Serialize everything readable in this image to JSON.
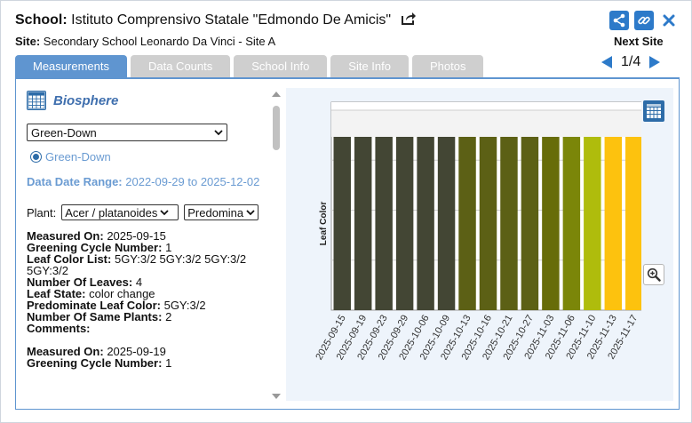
{
  "header": {
    "school_label": "School:",
    "school_name": "Istituto Comprensivo Statale \"Edmondo De Amicis\"",
    "site_label": "Site:",
    "site_name": "Secondary School Leonardo Da Vinci - Site A",
    "next_site_label": "Next Site",
    "page_indicator": "1/4"
  },
  "tabs": [
    {
      "label": "Measurements",
      "active": true
    },
    {
      "label": "Data Counts"
    },
    {
      "label": "School Info"
    },
    {
      "label": "Site Info"
    },
    {
      "label": "Photos"
    }
  ],
  "panel": {
    "protocol_title": "Biosphere",
    "protocol_select": "Green-Down",
    "radio_option": "Green-Down",
    "date_range_label": "Data Date Range:",
    "date_range_value": "2022-09-29 to 2025-12-02",
    "plant_label": "Plant:",
    "plant_select": "Acer / platanoides",
    "predominate_select": "Predomina"
  },
  "records": [
    {
      "measured_on_label": "Measured On:",
      "measured_on": "2025-09-15",
      "greening_cycle_label": "Greening Cycle Number:",
      "greening_cycle": "1",
      "leaf_color_list_label": "Leaf Color List:",
      "leaf_color_list": "5GY:3/2 5GY:3/2 5GY:3/2 5GY:3/2",
      "number_of_leaves_label": "Number Of Leaves:",
      "number_of_leaves": "4",
      "leaf_state_label": "Leaf State:",
      "leaf_state": "color change",
      "predominate_color_label": "Predominate Leaf Color:",
      "predominate_color": "5GY:3/2",
      "same_plants_label": "Number Of Same Plants:",
      "same_plants": "2",
      "comments_label": "Comments:",
      "comments": ""
    },
    {
      "measured_on_label": "Measured On:",
      "measured_on": "2025-09-19",
      "greening_cycle_label": "Greening Cycle Number:",
      "greening_cycle": "1"
    }
  ],
  "colors": {
    "accent": "#2d7ac9",
    "tab_active": "#5f95d0",
    "tab_inactive": "#cfcfcf",
    "chart_bg": "#eef4fb"
  },
  "icons": [
    "share-out-icon",
    "share-icon",
    "link-icon",
    "close-icon",
    "chevron-left-icon",
    "chevron-right-icon",
    "table-icon",
    "zoom-in-icon",
    "chevron-down-icon"
  ],
  "chart_data": {
    "type": "bar",
    "ylabel": "Leaf Color",
    "categories": [
      "2025-09-15",
      "2025-09-19",
      "2025-09-23",
      "2025-09-29",
      "2025-10-06",
      "2025-10-09",
      "2025-10-13",
      "2025-10-16",
      "2025-10-21",
      "2025-10-27",
      "2025-11-03",
      "2025-11-06",
      "2025-11-10",
      "2025-11-13",
      "2025-11-17"
    ],
    "values": [
      1,
      1,
      1,
      1,
      1,
      1,
      1,
      1,
      1,
      1,
      1,
      1,
      1,
      1,
      1
    ],
    "bar_colors": [
      "#434634",
      "#434634",
      "#434634",
      "#434634",
      "#434634",
      "#434634",
      "#5c6015",
      "#5c6015",
      "#5c6015",
      "#5c6015",
      "#676c09",
      "#7b8609",
      "#afbc0c",
      "#fdc20e",
      "#fdc20e"
    ],
    "ylim": [
      0,
      1.2
    ],
    "grid": true
  }
}
